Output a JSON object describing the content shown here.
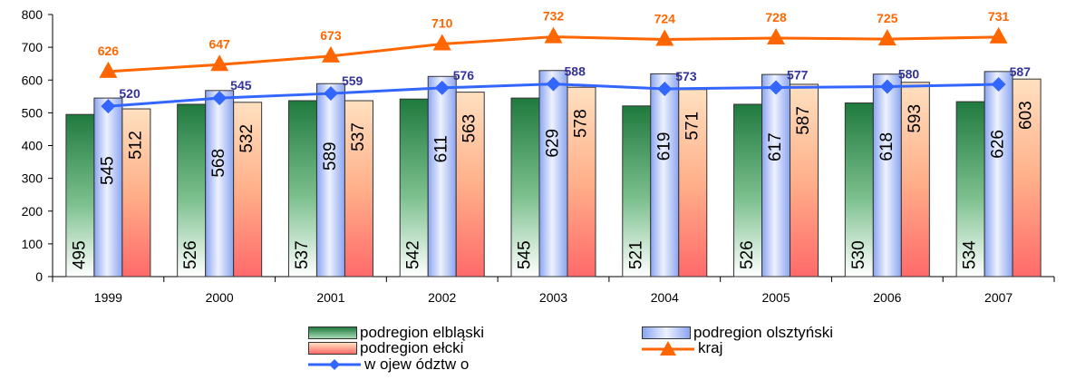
{
  "chart_data": {
    "type": "bar",
    "categories": [
      "1999",
      "2000",
      "2001",
      "2002",
      "2003",
      "2004",
      "2005",
      "2006",
      "2007"
    ],
    "series": [
      {
        "name": "podregion elbląski",
        "kind": "bar",
        "values": [
          495,
          526,
          537,
          542,
          545,
          521,
          526,
          530,
          534
        ],
        "color": "#2e8b57"
      },
      {
        "name": "podregion olsztyński",
        "kind": "bar",
        "values": [
          545,
          568,
          589,
          611,
          629,
          619,
          617,
          618,
          626
        ],
        "color": "#c8d8ff"
      },
      {
        "name": "podregion ełcki",
        "kind": "bar",
        "values": [
          512,
          532,
          537,
          563,
          578,
          571,
          587,
          593,
          603
        ],
        "color": "#ff8c6a"
      },
      {
        "name": "kraj",
        "kind": "line",
        "values": [
          626,
          647,
          673,
          710,
          732,
          724,
          728,
          725,
          731
        ],
        "color": "#ff6600",
        "marker": "triangle"
      },
      {
        "name": "w ojew ództw o",
        "kind": "line",
        "values": [
          520,
          545,
          559,
          576,
          588,
          573,
          577,
          580,
          587
        ],
        "color": "#3366ff",
        "marker": "diamond"
      }
    ],
    "ylim": [
      0,
      800
    ],
    "yticks": [
      "0",
      "100",
      "200",
      "300",
      "400",
      "500",
      "600",
      "700",
      "800"
    ],
    "grid": false,
    "legend_position": "bottom"
  },
  "legend": {
    "elblaski": "podregion elbląski",
    "olsztynski": "podregion olsztyński",
    "elcki": "podregion ełcki",
    "kraj": "kraj",
    "wojewodztwo": "w ojew ództw o"
  }
}
